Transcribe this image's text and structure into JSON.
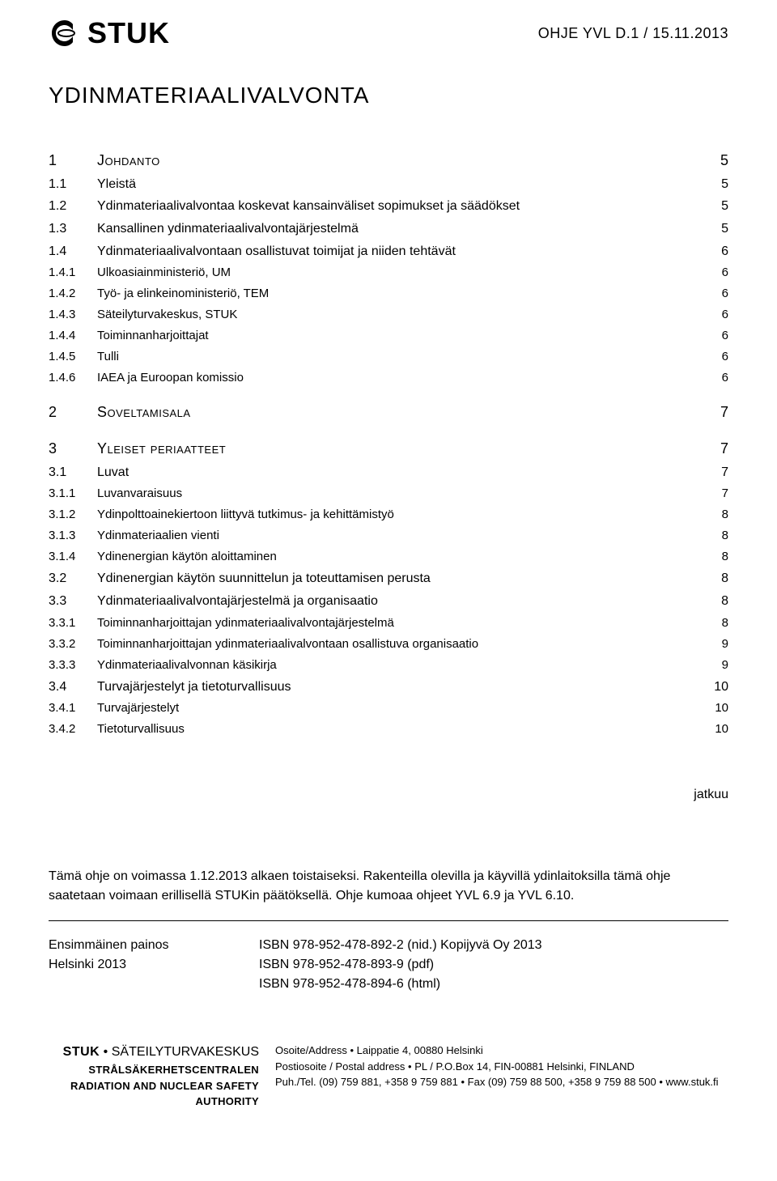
{
  "header": {
    "logo_text": "STUK",
    "doc_code": "OHJE YVL D.1 / 15.11.2013"
  },
  "title": "YDINMATERIAALIVALVONTA",
  "toc": [
    {
      "level": 1,
      "num": "1",
      "label": "Johdanto",
      "page": "5"
    },
    {
      "level": 2,
      "num": "1.1",
      "label": "Yleistä",
      "page": "5"
    },
    {
      "level": 2,
      "num": "1.2",
      "label": "Ydinmateriaalivalvontaa koskevat kansainväliset sopimukset ja säädökset",
      "page": "5"
    },
    {
      "level": 2,
      "num": "1.3",
      "label": "Kansallinen ydinmateriaalivalvontajärjestelmä",
      "page": "5"
    },
    {
      "level": 2,
      "num": "1.4",
      "label": "Ydinmateriaalivalvontaan osallistuvat toimijat ja niiden tehtävät",
      "page": "6"
    },
    {
      "level": 3,
      "num": "1.4.1",
      "label": "Ulkoasiainministeriö, UM",
      "page": "6"
    },
    {
      "level": 3,
      "num": "1.4.2",
      "label": "Työ- ja elinkeinoministeriö, TEM",
      "page": "6"
    },
    {
      "level": 3,
      "num": "1.4.3",
      "label": "Säteilyturvakeskus, STUK",
      "page": "6"
    },
    {
      "level": 3,
      "num": "1.4.4",
      "label": "Toiminnanharjoittajat",
      "page": "6"
    },
    {
      "level": 3,
      "num": "1.4.5",
      "label": "Tulli",
      "page": "6"
    },
    {
      "level": 3,
      "num": "1.4.6",
      "label": "IAEA ja Euroopan komissio",
      "page": "6"
    },
    {
      "spacer": true
    },
    {
      "level": 1,
      "num": "2",
      "label": "Soveltamisala",
      "page": "7"
    },
    {
      "spacer": true
    },
    {
      "level": 1,
      "num": "3",
      "label": "Yleiset periaatteet",
      "page": "7"
    },
    {
      "level": 2,
      "num": "3.1",
      "label": "Luvat",
      "page": "7"
    },
    {
      "level": 3,
      "num": "3.1.1",
      "label": "Luvanvaraisuus",
      "page": "7"
    },
    {
      "level": 3,
      "num": "3.1.2",
      "label": "Ydinpolttoainekiertoon liittyvä tutkimus- ja kehittämistyö",
      "page": "8"
    },
    {
      "level": 3,
      "num": "3.1.3",
      "label": "Ydinmateriaalien vienti",
      "page": "8"
    },
    {
      "level": 3,
      "num": "3.1.4",
      "label": "Ydinenergian käytön aloittaminen",
      "page": "8"
    },
    {
      "level": 2,
      "num": "3.2",
      "label": "Ydinenergian käytön suunnittelun ja toteuttamisen perusta",
      "page": "8"
    },
    {
      "level": 2,
      "num": "3.3",
      "label": "Ydinmateriaalivalvontajärjestelmä ja organisaatio",
      "page": "8"
    },
    {
      "level": 3,
      "num": "3.3.1",
      "label": "Toiminnanharjoittajan ydinmateriaalivalvontajärjestelmä",
      "page": "8"
    },
    {
      "level": 3,
      "num": "3.3.2",
      "label": "Toiminnanharjoittajan ydinmateriaalivalvontaan osallistuva organisaatio",
      "page": "9"
    },
    {
      "level": 3,
      "num": "3.3.3",
      "label": "Ydinmateriaalivalvonnan käsikirja",
      "page": "9"
    },
    {
      "level": 2,
      "num": "3.4",
      "label": "Turvajärjestelyt ja tietoturvallisuus",
      "page": "10"
    },
    {
      "level": 3,
      "num": "3.4.1",
      "label": "Turvajärjestelyt",
      "page": "10"
    },
    {
      "level": 3,
      "num": "3.4.2",
      "label": "Tietoturvallisuus",
      "page": "10"
    }
  ],
  "continues_label": "jatkuu",
  "validity_note": "Tämä ohje on voimassa 1.12.2013 alkaen toistaiseksi. Rakenteilla olevilla ja käyvillä ydinlaitoksilla tämä ohje saatetaan voimaan erillisellä STUKin päätöksellä. Ohje kumoaa ohjeet YVL 6.9 ja YVL 6.10.",
  "edition": {
    "left_line1": "Ensimmäinen painos",
    "left_line2": "Helsinki 2013",
    "right_line1": "ISBN 978-952-478-892-2 (nid.) Kopijyvä Oy 2013",
    "right_line2": "ISBN 978-952-478-893-9 (pdf)",
    "right_line3": "ISBN 978-952-478-894-6 (html)"
  },
  "footer": {
    "org_bold": "STUK",
    "org_main": "SÄTEILYTURVAKESKUS",
    "org_sub1": "STRÅLSÄKERHETSCENTRALEN",
    "org_sub2": "RADIATION AND NUCLEAR SAFETY AUTHORITY",
    "addr_line1": "Osoite/Address • Laippatie 4, 00880 Helsinki",
    "addr_line2": "Postiosoite / Postal address • PL / P.O.Box 14, FIN-00881 Helsinki, FINLAND",
    "addr_line3": "Puh./Tel. (09) 759 881, +358 9 759 881 • Fax (09) 759 88 500, +358 9 759 88 500 • www.stuk.fi"
  }
}
